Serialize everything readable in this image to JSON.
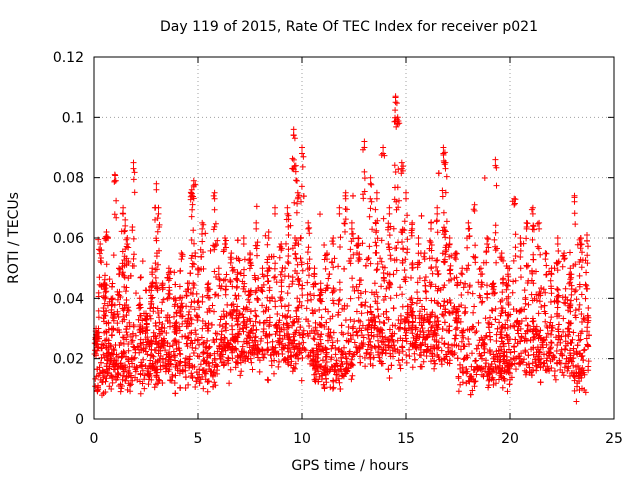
{
  "chart_data": {
    "type": "scatter",
    "title": "Day 119 of 2015, Rate Of TEC Index for receiver p021",
    "xlabel": "GPS time / hours",
    "ylabel": "ROTI / TECUs",
    "xlim": [
      0,
      25
    ],
    "ylim": [
      0,
      0.12
    ],
    "xticks": [
      0,
      5,
      10,
      15,
      20,
      25
    ],
    "xtick_labels": [
      "0",
      "5",
      "10",
      "15",
      "20",
      "25"
    ],
    "yticks": [
      0,
      0.02,
      0.04,
      0.06,
      0.08,
      0.1,
      0.12
    ],
    "ytick_labels": [
      "0",
      "0.02",
      "0.04",
      "0.06",
      "0.08",
      "0.1",
      "0.12"
    ],
    "grid": true,
    "marker": "plus",
    "color": "#ff0000",
    "series": [
      {
        "values_note": "",
        "x": [
          0.1,
          0.3,
          0.5,
          0.6,
          0.9,
          1.0,
          1.2,
          1.4,
          1.5,
          1.6,
          1.9,
          2.2,
          2.5,
          2.8,
          3.0,
          3.1,
          3.3,
          3.6,
          3.9,
          4.2,
          4.5,
          4.7,
          4.8,
          5.0,
          5.2,
          5.5,
          5.8,
          6.0,
          6.3,
          6.6,
          6.9,
          7.2,
          7.5,
          7.8,
          8.1,
          8.4,
          8.7,
          9.0,
          9.3,
          9.6,
          9.7,
          9.8,
          10.0,
          10.3,
          10.6,
          10.9,
          11.2,
          11.5,
          11.8,
          12.1,
          12.4,
          12.7,
          13.0,
          13.3,
          13.6,
          13.9,
          14.2,
          14.5,
          14.6,
          14.8,
          15.0,
          15.3,
          15.6,
          15.9,
          16.2,
          16.5,
          16.8,
          16.9,
          17.1,
          17.4,
          17.7,
          18.0,
          18.3,
          18.6,
          18.9,
          19.2,
          19.3,
          19.6,
          19.9,
          20.2,
          20.5,
          20.8,
          21.1,
          21.4,
          21.7,
          22.0,
          22.3,
          22.6,
          22.9,
          23.1,
          23.4,
          23.7
        ],
        "y": [
          0.03,
          0.058,
          0.045,
          0.062,
          0.04,
          0.081,
          0.05,
          0.07,
          0.066,
          0.06,
          0.085,
          0.04,
          0.035,
          0.05,
          0.078,
          0.07,
          0.045,
          0.05,
          0.04,
          0.055,
          0.045,
          0.076,
          0.079,
          0.05,
          0.065,
          0.045,
          0.075,
          0.05,
          0.06,
          0.055,
          0.048,
          0.06,
          0.055,
          0.065,
          0.05,
          0.062,
          0.07,
          0.058,
          0.07,
          0.096,
          0.084,
          0.075,
          0.09,
          0.065,
          0.05,
          0.045,
          0.055,
          0.06,
          0.07,
          0.075,
          0.065,
          0.06,
          0.092,
          0.08,
          0.075,
          0.09,
          0.07,
          0.107,
          0.1,
          0.085,
          0.075,
          0.065,
          0.06,
          0.055,
          0.065,
          0.07,
          0.09,
          0.085,
          0.06,
          0.055,
          0.05,
          0.065,
          0.071,
          0.05,
          0.06,
          0.045,
          0.086,
          0.055,
          0.05,
          0.073,
          0.06,
          0.065,
          0.07,
          0.065,
          0.055,
          0.05,
          0.06,
          0.055,
          0.05,
          0.074,
          0.06,
          0.061
        ]
      }
    ]
  }
}
